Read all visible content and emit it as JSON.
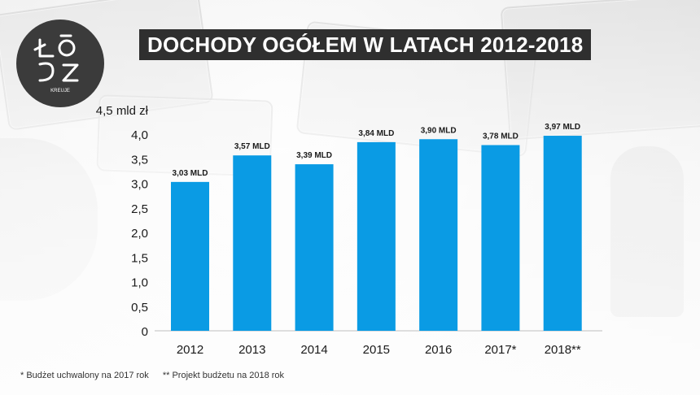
{
  "colors": {
    "accent": "#0a9be4",
    "title_bg": "#2f2f2f",
    "title_text": "#ffffff",
    "axis_text": "#1a1a1a",
    "label_text": "#1a1a1a",
    "logo_bg": "#3b3b3b"
  },
  "logo": {
    "icon": "logo-mark",
    "subtitle": "KREUJE"
  },
  "title": "DOCHODY OGÓŁEM W LATACH 2012-2018",
  "footnotes": [
    "* Budżet uchwalony na 2017 rok",
    "** Projekt budżetu na 2018 rok"
  ],
  "chart_data": {
    "type": "bar",
    "title": "DOCHODY OGÓŁEM W LATACH 2012-2018",
    "categories": [
      "2012",
      "2013",
      "2014",
      "2015",
      "2016",
      "2017*",
      "2018**"
    ],
    "values": [
      3.03,
      3.57,
      3.39,
      3.84,
      3.9,
      3.78,
      3.97
    ],
    "data_labels": [
      "3,03 MLD",
      "3,57 MLD",
      "3,39 MLD",
      "3,84 MLD",
      "3,90 MLD",
      "3,78 MLD",
      "3,97 MLD"
    ],
    "y_ticks": [
      "0",
      "0,5",
      "1,0",
      "1,5",
      "2,0",
      "2,5",
      "3,0",
      "3,5",
      "4,0",
      "4,5 mld zł"
    ],
    "y_tick_values": [
      0,
      0.5,
      1,
      1.5,
      2,
      2.5,
      3,
      3.5,
      4,
      4.5
    ],
    "ylim": [
      0,
      4.5
    ],
    "grid": false,
    "legend": "none"
  }
}
